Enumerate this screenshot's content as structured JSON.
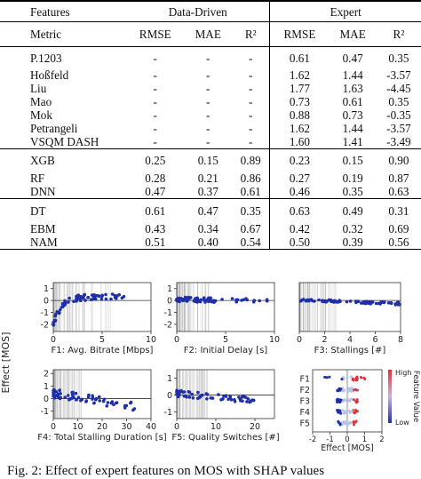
{
  "table": {
    "group_headers": [
      "Features",
      "Data-Driven",
      "Expert"
    ],
    "metric_label": "Metric",
    "metric_headers": [
      "RMSE",
      "MAE",
      "R²",
      "RMSE",
      "MAE",
      "R²"
    ],
    "groups": [
      {
        "rows": [
          {
            "feature": "P.1203",
            "values": [
              "-",
              "-",
              "-",
              "0.61",
              "0.47",
              "0.35"
            ]
          },
          {
            "feature": "Hoßfeld",
            "values": [
              "-",
              "-",
              "-",
              "1.62",
              "1.44",
              "-3.57"
            ]
          },
          {
            "feature": "Liu",
            "values": [
              "-",
              "-",
              "-",
              "1.77",
              "1.63",
              "-4.45"
            ]
          },
          {
            "feature": "Mao",
            "values": [
              "-",
              "-",
              "-",
              "0.73",
              "0.61",
              "0.35"
            ]
          },
          {
            "feature": "Mok",
            "values": [
              "-",
              "-",
              "-",
              "0.88",
              "0.73",
              "-0.35"
            ]
          },
          {
            "feature": "Petrangeli",
            "values": [
              "-",
              "-",
              "-",
              "1.62",
              "1.44",
              "-3.57"
            ]
          },
          {
            "feature": "VSQM DASH",
            "values": [
              "-",
              "-",
              "-",
              "1.60",
              "1.41",
              "-3.49"
            ]
          }
        ]
      },
      {
        "rows": [
          {
            "feature": "XGB",
            "values": [
              "0.25",
              "0.15",
              "0.89",
              "0.23",
              "0.15",
              "0.90"
            ]
          },
          {
            "feature": "RF",
            "values": [
              "0.28",
              "0.21",
              "0.86",
              "0.27",
              "0.19",
              "0.87"
            ]
          },
          {
            "feature": "DNN",
            "values": [
              "0.47",
              "0.37",
              "0.61",
              "0.46",
              "0.35",
              "0.63"
            ]
          }
        ]
      },
      {
        "rows": [
          {
            "feature": "DT",
            "values": [
              "0.61",
              "0.47",
              "0.35",
              "0.63",
              "0.49",
              "0.31"
            ]
          },
          {
            "feature": "EBM",
            "values": [
              "0.43",
              "0.34",
              "0.67",
              "0.42",
              "0.32",
              "0.69"
            ]
          },
          {
            "feature": "NAM",
            "values": [
              "0.51",
              "0.40",
              "0.54",
              "0.50",
              "0.39",
              "0.56"
            ]
          }
        ]
      }
    ]
  },
  "figure": {
    "ylabel": "Effect [MOS]",
    "colors": {
      "dot": "#1f2fa8",
      "highlight": "#e0313a",
      "grid": "#9a9a9a"
    },
    "subplots": [
      {
        "label": "F1: Avg. Bitrate [Mbps]",
        "xticks": [
          "0",
          "5",
          "10"
        ],
        "yticks": [
          "1",
          "0",
          "-1",
          "-2"
        ]
      },
      {
        "label": "F2: Initial Delay [s]",
        "xticks": [
          "0",
          "5",
          "10"
        ],
        "yticks": [
          "1",
          "0",
          "-1",
          "-2"
        ]
      },
      {
        "label": "F3: Stallings [#]",
        "xticks": [
          "0",
          "2",
          "4",
          "6",
          "8"
        ],
        "yticks": []
      },
      {
        "label": "F4: Total Stalling Duration [s]",
        "xticks": [
          "0",
          "10",
          "20",
          "30",
          "40"
        ],
        "yticks": [
          "2",
          "1",
          "0",
          "-1"
        ]
      },
      {
        "label": "F5: Quality Switches [#]",
        "xticks": [
          "0",
          "10",
          "20"
        ],
        "yticks": [
          "1",
          "0",
          "-1"
        ]
      }
    ],
    "beeswarm": {
      "features": [
        "F1",
        "F2",
        "F3",
        "F4",
        "F5"
      ],
      "xticks": [
        "-2",
        "-1",
        "0",
        "1",
        "2"
      ],
      "xlabel": "Effect [MOS]",
      "colorbar_title": "Feature Value",
      "colorbar_high": "High",
      "colorbar_low": "Low"
    }
  },
  "caption": "Fig. 2: Effect of expert features on MOS with SHAP values"
}
